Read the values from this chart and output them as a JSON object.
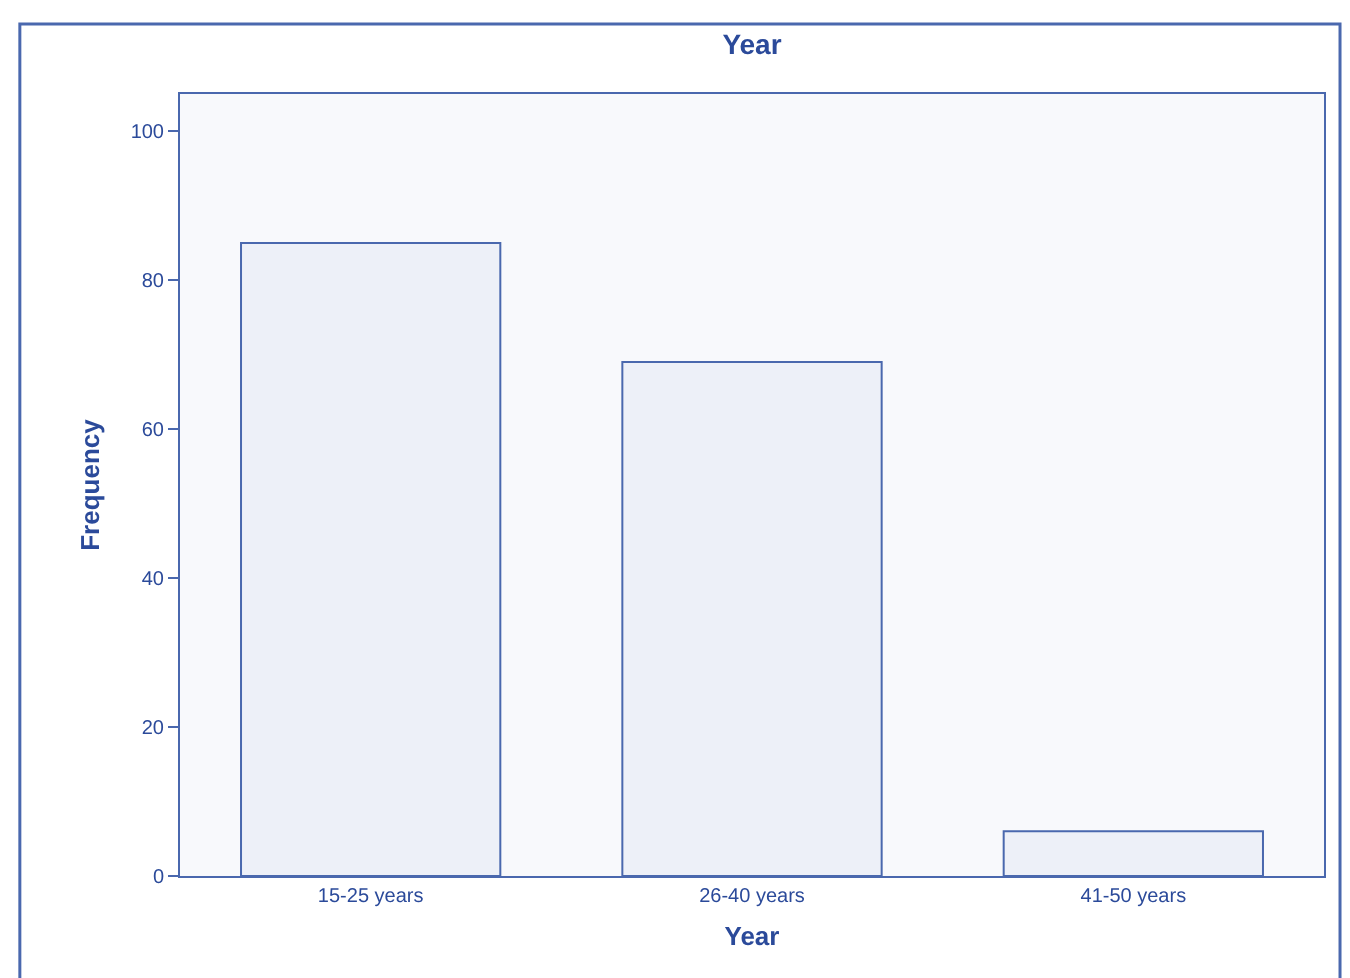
{
  "chart_data": {
    "type": "bar",
    "title": "Year",
    "xlabel": "Year",
    "ylabel": "Frequency",
    "categories": [
      "15-25 years",
      "26-40 years",
      "41-50 years"
    ],
    "values": [
      85,
      69,
      6
    ],
    "color": "#edf0f8",
    "ylim": [
      0,
      105
    ],
    "yticks": [
      0,
      20,
      40,
      60,
      80,
      100
    ],
    "grid": false
  }
}
